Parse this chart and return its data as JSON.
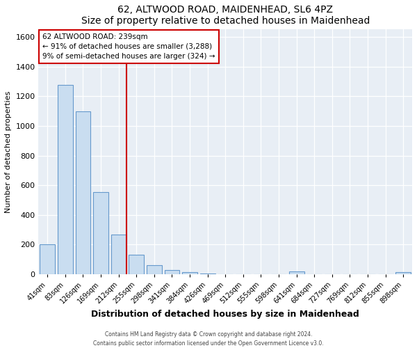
{
  "title": "62, ALTWOOD ROAD, MAIDENHEAD, SL6 4PZ",
  "subtitle": "Size of property relative to detached houses in Maidenhead",
  "xlabel": "Distribution of detached houses by size in Maidenhead",
  "ylabel": "Number of detached properties",
  "bin_labels": [
    "41sqm",
    "83sqm",
    "126sqm",
    "169sqm",
    "212sqm",
    "255sqm",
    "298sqm",
    "341sqm",
    "384sqm",
    "426sqm",
    "469sqm",
    "512sqm",
    "555sqm",
    "598sqm",
    "641sqm",
    "684sqm",
    "727sqm",
    "769sqm",
    "812sqm",
    "855sqm",
    "898sqm"
  ],
  "bar_heights": [
    200,
    1275,
    1100,
    555,
    270,
    130,
    60,
    30,
    15,
    5,
    0,
    0,
    0,
    0,
    20,
    0,
    0,
    0,
    0,
    0,
    15
  ],
  "bar_color": "#c9ddf0",
  "bar_edge_color": "#6699cc",
  "annotation_title": "62 ALTWOOD ROAD: 239sqm",
  "annotation_line1": "← 91% of detached houses are smaller (3,288)",
  "annotation_line2": "9% of semi-detached houses are larger (324) →",
  "annotation_box_color": "#ffffff",
  "annotation_box_edge": "#cc0000",
  "vline_color": "#cc0000",
  "ylim": [
    0,
    1650
  ],
  "yticks": [
    0,
    200,
    400,
    600,
    800,
    1000,
    1200,
    1400,
    1600
  ],
  "footer_line1": "Contains HM Land Registry data © Crown copyright and database right 2024.",
  "footer_line2": "Contains public sector information licensed under the Open Government Licence v3.0.",
  "background_color": "#e8eef5",
  "fig_background": "#ffffff"
}
